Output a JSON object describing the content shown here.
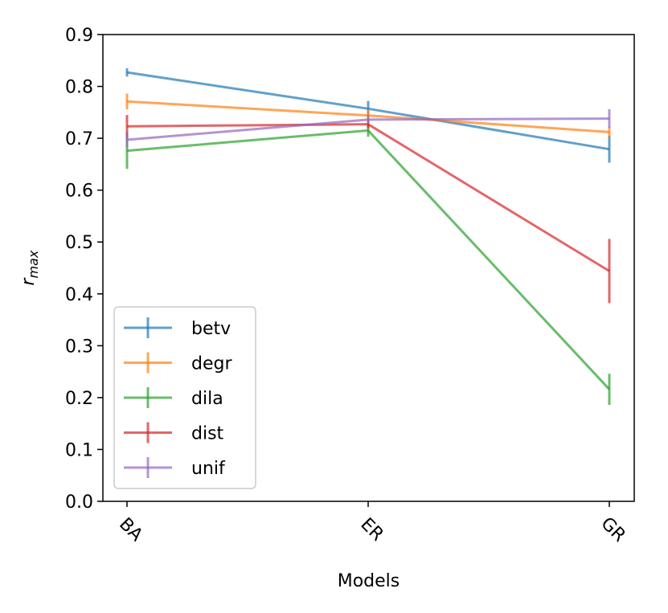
{
  "chart_data": {
    "type": "line",
    "categories": [
      "BA",
      "ER",
      "GR"
    ],
    "xlabel": "Models",
    "ylabel_base": "r",
    "ylabel_sub": "max",
    "ylim": [
      0.0,
      0.9
    ],
    "yticks": [
      0.0,
      0.1,
      0.2,
      0.3,
      0.4,
      0.5,
      0.6,
      0.7,
      0.8,
      0.9
    ],
    "ytick_labels": [
      "0.0",
      "0.1",
      "0.2",
      "0.3",
      "0.4",
      "0.5",
      "0.6",
      "0.7",
      "0.8",
      "0.9"
    ],
    "legend_position": "lower-left",
    "series": [
      {
        "name": "betv",
        "color": "#1f77b4",
        "values": [
          0.827,
          0.757,
          0.679
        ],
        "errors": [
          0.008,
          0.015,
          0.026
        ]
      },
      {
        "name": "degr",
        "color": "#ff7f0e",
        "values": [
          0.771,
          0.744,
          0.712
        ],
        "errors": [
          0.015,
          0.012,
          0.01
        ]
      },
      {
        "name": "dila",
        "color": "#2ca02c",
        "values": [
          0.676,
          0.715,
          0.216
        ],
        "errors": [
          0.035,
          0.012,
          0.03
        ]
      },
      {
        "name": "dist",
        "color": "#d62728",
        "values": [
          0.723,
          0.727,
          0.444
        ],
        "errors": [
          0.022,
          0.008,
          0.062
        ]
      },
      {
        "name": "unif",
        "color": "#9467bd",
        "values": [
          0.697,
          0.736,
          0.738
        ],
        "errors": [
          0.015,
          0.008,
          0.018
        ]
      }
    ]
  }
}
